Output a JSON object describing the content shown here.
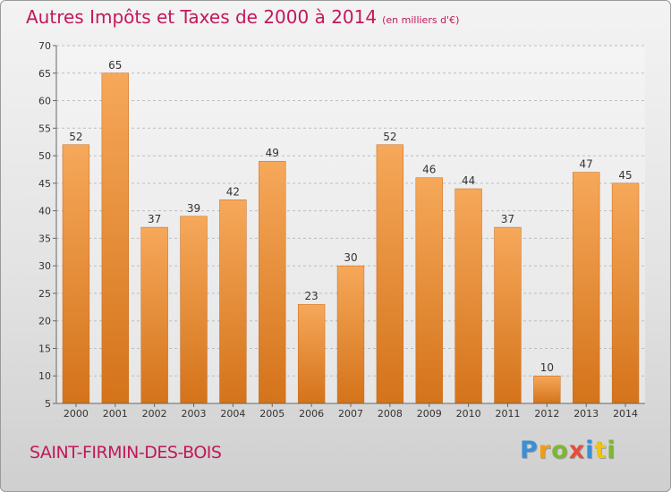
{
  "header": {
    "title": "Autres Impôts et Taxes de 2000 à 2014",
    "subtitle": "(en milliers d'€)"
  },
  "footer": {
    "commune": "SAINT-FIRMIN-DES-BOIS",
    "logo_letters": [
      {
        "char": "P",
        "color": "#3a8fd6"
      },
      {
        "char": "r",
        "color": "#f39c12"
      },
      {
        "char": "o",
        "color": "#7cb82f"
      },
      {
        "char": "x",
        "color": "#e74c3c"
      },
      {
        "char": "i",
        "color": "#3a8fd6"
      },
      {
        "char": "t",
        "color": "#f1c40f"
      },
      {
        "char": "i",
        "color": "#7cb82f"
      }
    ]
  },
  "chart_data": {
    "type": "bar",
    "title": "Autres Impôts et Taxes de 2000 à 2014",
    "subtitle": "(en milliers d'€)",
    "xlabel": "",
    "ylabel": "",
    "categories": [
      "2000",
      "2001",
      "2002",
      "2003",
      "2004",
      "2005",
      "2006",
      "2007",
      "2008",
      "2009",
      "2010",
      "2011",
      "2012",
      "2013",
      "2014"
    ],
    "values": [
      52,
      65,
      37,
      39,
      42,
      49,
      23,
      30,
      52,
      46,
      44,
      37,
      10,
      47,
      45
    ],
    "ylim": [
      5,
      70
    ],
    "yticks": [
      5,
      10,
      15,
      20,
      25,
      30,
      35,
      40,
      45,
      50,
      55,
      60,
      65,
      70
    ],
    "grid": true,
    "bar_color": "#f0923a",
    "bar_color_dark": "#cf6a12"
  }
}
